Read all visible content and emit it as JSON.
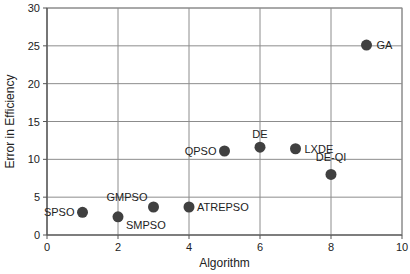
{
  "chart_data": {
    "type": "scatter",
    "x_label": "Algorithm",
    "y_label": "Error in Efficiency",
    "x": [
      1,
      2,
      3,
      4,
      5,
      6,
      7,
      8,
      9
    ],
    "values": [
      3.0,
      2.4,
      3.7,
      3.7,
      11.1,
      11.6,
      11.4,
      8.0,
      25.1
    ],
    "labels": [
      "SPSO",
      "SMPSO",
      "GMPSO",
      "ATREPSO",
      "QPSO",
      "DE",
      "LXDE",
      "DE-QI",
      "GA"
    ],
    "color": "#404040",
    "marker": "circle",
    "xlim": [
      0,
      10
    ],
    "xticks": [
      0,
      2,
      4,
      6,
      8,
      10
    ],
    "ylim": [
      0,
      30
    ],
    "yticks": [
      0,
      5,
      10,
      15,
      20,
      25,
      30
    ],
    "grid": true
  }
}
